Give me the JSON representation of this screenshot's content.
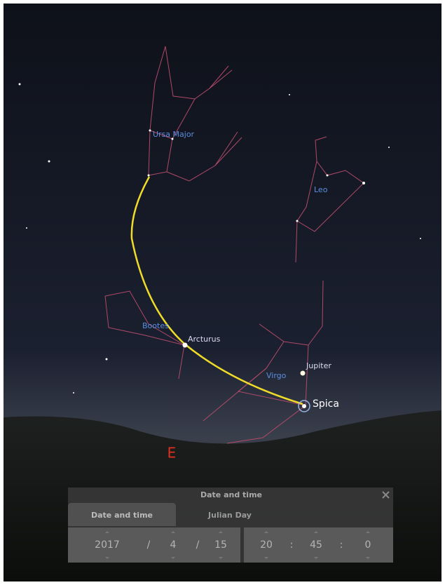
{
  "sky": {
    "constellations": [
      "Ursa Major",
      "Leo",
      "Bootes",
      "Virgo"
    ],
    "objects": [
      "Arcturus",
      "Jupiter",
      "Spica"
    ],
    "cardinal": "E"
  },
  "dialog": {
    "title": "Date and time",
    "tabs": [
      "Date and time",
      "Julian Day"
    ],
    "date": {
      "year": 2017,
      "sep1": "/",
      "month": 4,
      "sep2": "/",
      "day": 15
    },
    "time": {
      "hour": 20,
      "sep1": ":",
      "minute": 45,
      "sep2": ":",
      "second": 0
    }
  }
}
